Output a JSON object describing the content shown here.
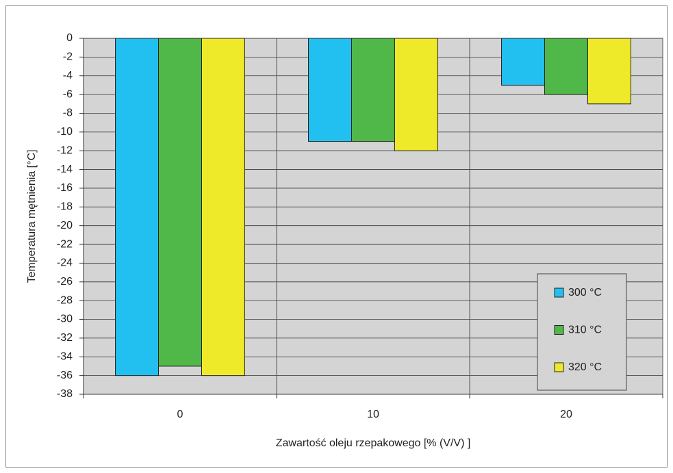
{
  "chart_data": {
    "type": "bar",
    "y_label": "Temperatura mętnienia [°C]",
    "x_label": "Zawartość oleju rzepakowego [% (V/V) ]",
    "categories": [
      "0",
      "10",
      "20"
    ],
    "series": [
      {
        "name": "300 °C",
        "color": "#22c0f0",
        "values": [
          -36,
          -11,
          -5
        ]
      },
      {
        "name": "310 °C",
        "color": "#50b848",
        "values": [
          -35,
          -11,
          -6
        ]
      },
      {
        "name": "320 °C",
        "color": "#eeea2a",
        "values": [
          -36,
          -12,
          -7
        ]
      }
    ],
    "ylim": [
      -38,
      0
    ],
    "yticks": [
      0,
      -2,
      -4,
      -6,
      -8,
      -10,
      -12,
      -14,
      -16,
      -18,
      -20,
      -22,
      -24,
      -26,
      -28,
      -30,
      -32,
      -34,
      -36,
      -38
    ],
    "grid": true
  }
}
